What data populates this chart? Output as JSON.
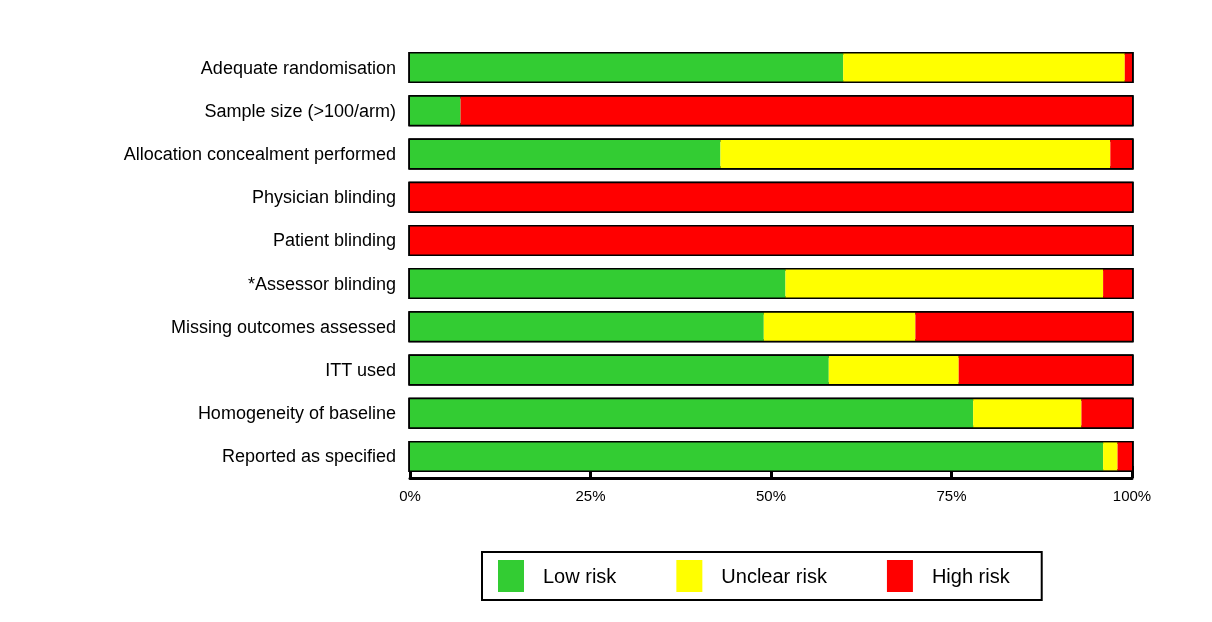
{
  "chart_data": {
    "type": "bar",
    "orientation": "horizontal",
    "stacked": true,
    "categories": [
      "Adequate randomisation",
      "Sample size (>100/arm)",
      "Allocation concealment performed",
      "Physician blinding",
      "Patient blinding",
      "*Assessor blinding",
      "Missing outcomes assessed",
      "ITT used",
      "Homogeneity of baseline",
      "Reported as specified"
    ],
    "series": [
      {
        "name": "Low risk",
        "color": "#33cc33",
        "values": [
          60,
          7,
          43,
          0,
          0,
          52,
          49,
          58,
          78,
          96
        ]
      },
      {
        "name": "Unclear risk",
        "color": "#ffff00",
        "values": [
          39,
          0,
          54,
          0,
          0,
          44,
          21,
          18,
          15,
          2
        ]
      },
      {
        "name": "High risk",
        "color": "#ff0000",
        "values": [
          1,
          93,
          3,
          100,
          100,
          4,
          30,
          24,
          7,
          2
        ]
      }
    ],
    "xlim": [
      0,
      100
    ],
    "xticks": [
      {
        "value": 0,
        "label": "0%"
      },
      {
        "value": 25,
        "label": "25%"
      },
      {
        "value": 50,
        "label": "50%"
      },
      {
        "value": 75,
        "label": "75%"
      },
      {
        "value": 100,
        "label": "100%"
      }
    ],
    "grid": false,
    "legend": "bottom"
  }
}
